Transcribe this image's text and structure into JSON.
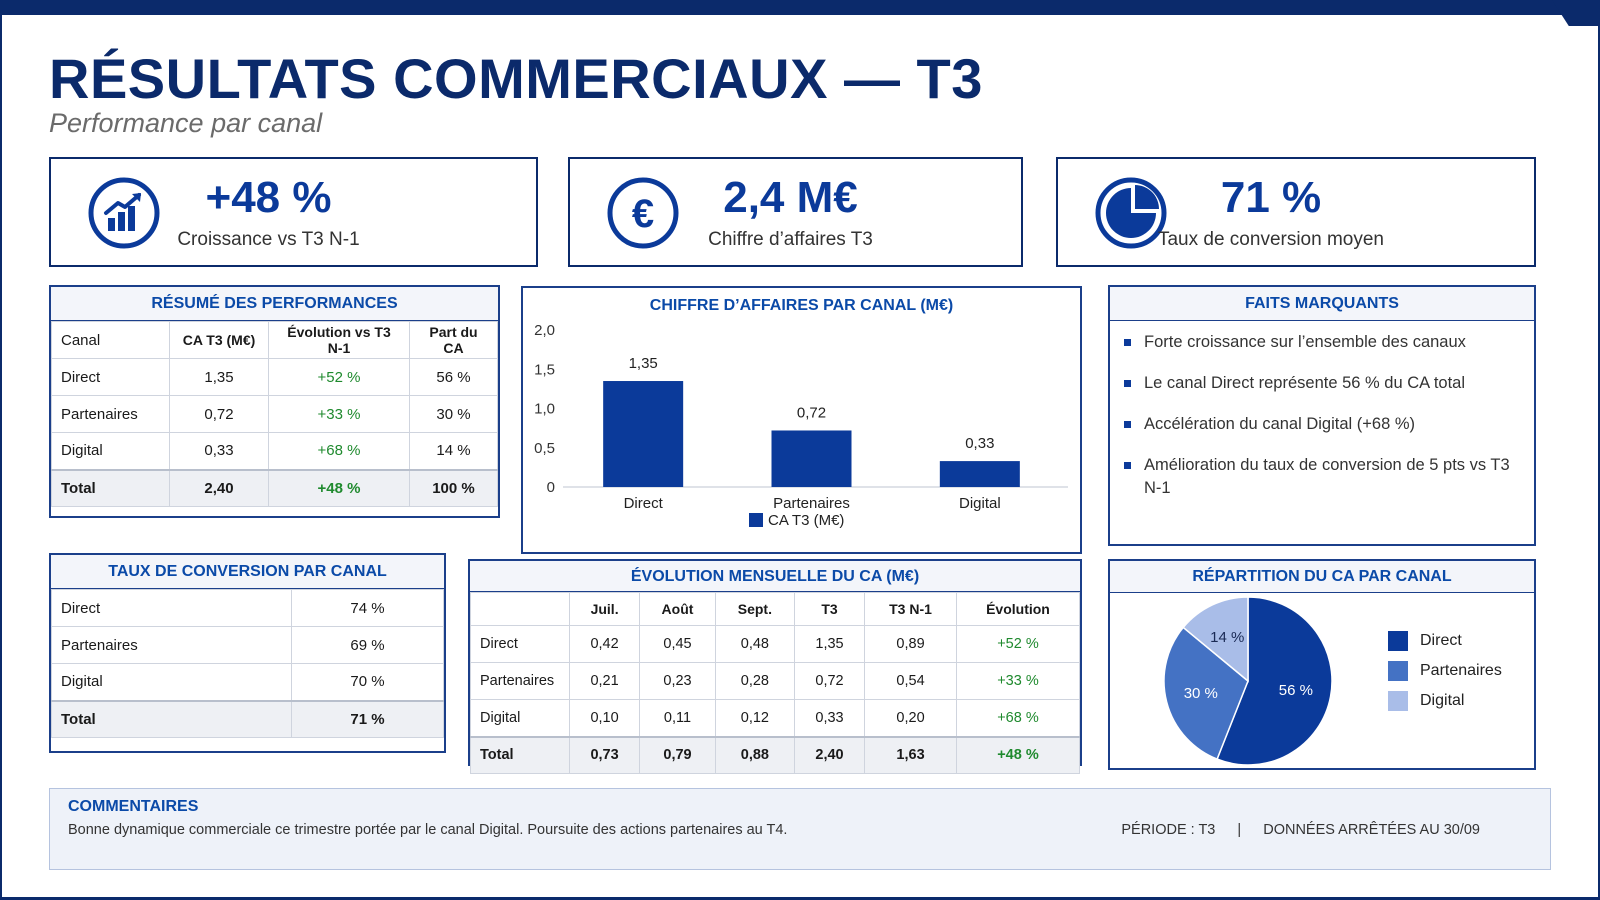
{
  "header": {
    "title": "RÉSULTATS COMMERCIAUX — T3",
    "subtitle": "Performance par canal"
  },
  "kpis": [
    {
      "value": "+48 %",
      "label": "Croissance vs T3 N-1",
      "icon": "bar-chart-up-icon"
    },
    {
      "value": "2,4 M€",
      "label": "Chiffre d’affaires T3",
      "icon": "euro-icon"
    },
    {
      "value": "71 %",
      "label": "Taux de conversion moyen",
      "icon": "pie-chart-icon"
    }
  ],
  "summary": {
    "title": "RÉSUMÉ DES PERFORMANCES",
    "headers": [
      "Canal",
      "CA T3 (M€)",
      "Évolution vs T3 N-1",
      "Part du CA"
    ],
    "rows": [
      [
        "Direct",
        "1,35",
        "+52 %",
        "56 %"
      ],
      [
        "Partenaires",
        "0,72",
        "+33 %",
        "30 %"
      ],
      [
        "Digital",
        "0,33",
        "+68 %",
        "14 %"
      ]
    ],
    "total": [
      "Total",
      "2,40",
      "+48 %",
      "100 %"
    ]
  },
  "conversion": {
    "title": "TAUX DE CONVERSION PAR CANAL",
    "rows": [
      [
        "Direct",
        "74 %"
      ],
      [
        "Partenaires",
        "69 %"
      ],
      [
        "Digital",
        "70 %"
      ]
    ],
    "total": [
      "Total",
      "71 %"
    ]
  },
  "monthly": {
    "title": "ÉVOLUTION MENSUELLE DU CA (M€)",
    "headers": [
      "",
      "Juil.",
      "Août",
      "Sept.",
      "T3",
      "T3 N-1",
      "Évolution"
    ],
    "rows": [
      [
        "Direct",
        "0,42",
        "0,45",
        "0,48",
        "1,35",
        "0,89",
        "+52 %"
      ],
      [
        "Partenaires",
        "0,21",
        "0,23",
        "0,28",
        "0,72",
        "0,54",
        "+33 %"
      ],
      [
        "Digital",
        "0,10",
        "0,11",
        "0,12",
        "0,33",
        "0,20",
        "+68 %"
      ]
    ],
    "total": [
      "Total",
      "0,73",
      "0,79",
      "0,88",
      "2,40",
      "1,63",
      "+48 %"
    ]
  },
  "highlights": {
    "title": "FAITS MARQUANTS",
    "items": [
      "Forte croissance sur l’ensemble des canaux",
      "Le canal Direct représente 56 % du CA total",
      "Accélération du canal Digital (+68 %)",
      "Amélioration du taux de conversion de 5 pts vs T3 N-1"
    ]
  },
  "comments": {
    "title": "COMMENTAIRES",
    "text": "Bonne dynamique commerciale ce trimestre portée par le canal Digital. Poursuite des actions partenaires au T4.",
    "period": "PÉRIODE : T3",
    "separator": "|",
    "data_date": "DONNÉES ARRÊTÉES AU 30/09"
  },
  "colors": {
    "navy": "#0b2a6b",
    "primary": "#0b3a9a",
    "mid": "#4472c4",
    "light": "#a9bde8",
    "green": "#1f8a2e"
  },
  "chart_data": [
    {
      "type": "bar",
      "title": "CHIFFRE D’AFFAIRES PAR CANAL (M€)",
      "categories": [
        "Direct",
        "Partenaires",
        "Digital"
      ],
      "series": [
        {
          "name": "CA T3 (M€)",
          "values": [
            1.35,
            0.72,
            0.33
          ]
        }
      ],
      "data_labels": [
        "1,35",
        "0,72",
        "0,33"
      ],
      "ylim": [
        0,
        2.0
      ],
      "yticks": [
        "0",
        "0,5",
        "1,0",
        "1,5",
        "2,0"
      ],
      "ytick_values": [
        0,
        0.5,
        1.0,
        1.5,
        2.0
      ],
      "legend": "bottom",
      "grid": false
    },
    {
      "type": "pie",
      "title": "RÉPARTITION DU CA PAR CANAL",
      "categories": [
        "Direct",
        "Partenaires",
        "Digital"
      ],
      "values": [
        56,
        30,
        14
      ],
      "labels": [
        "56 %",
        "30 %",
        "14 %"
      ],
      "colors": [
        "#0b3a9a",
        "#4472c4",
        "#a9bde8"
      ],
      "legend": "right"
    }
  ]
}
